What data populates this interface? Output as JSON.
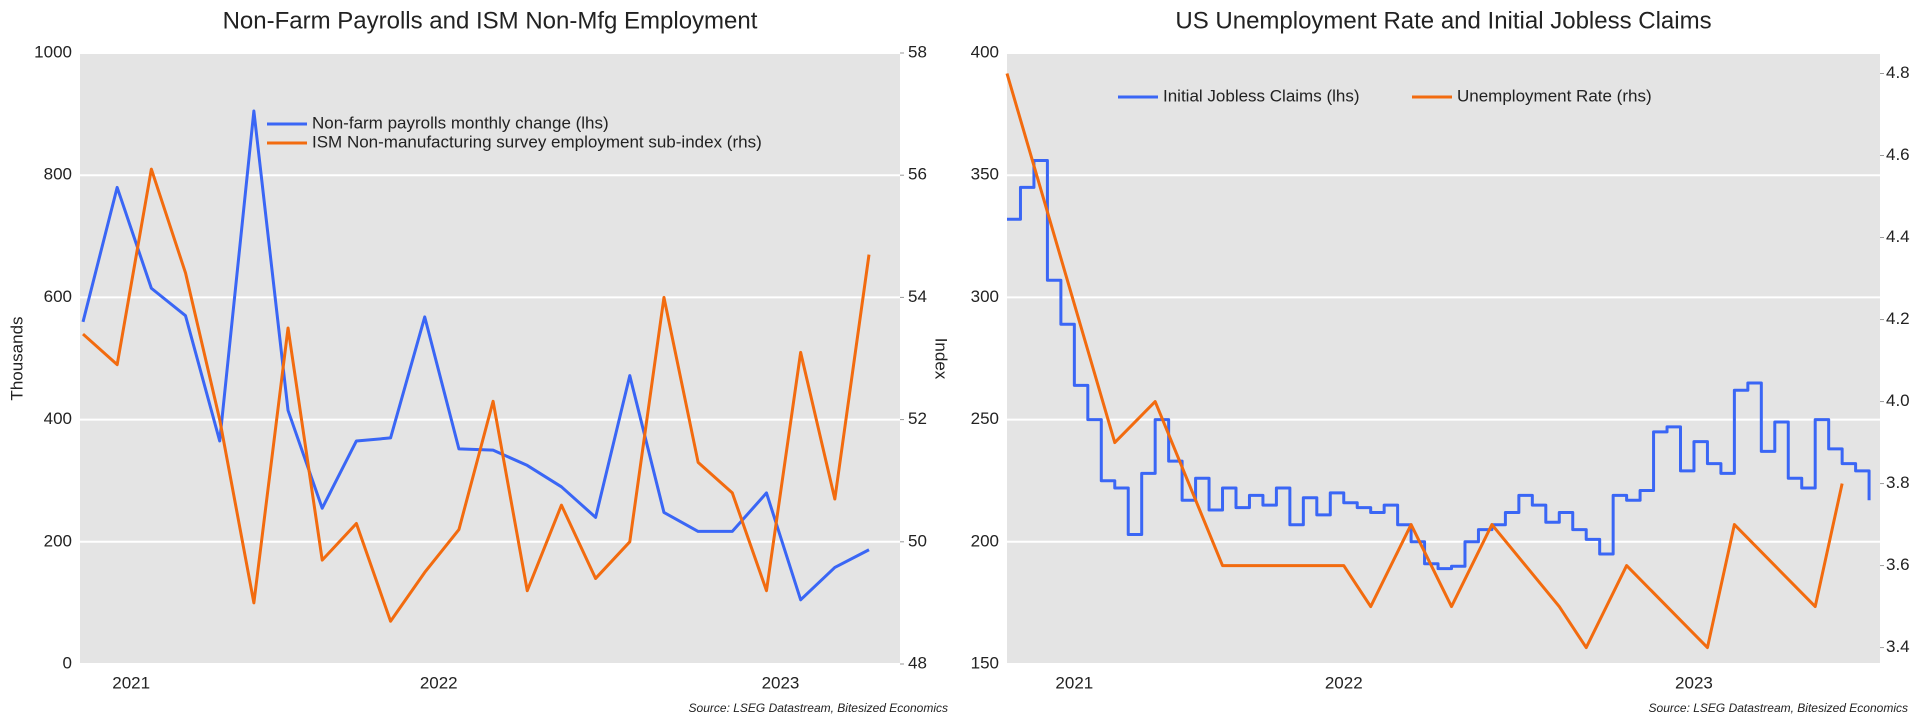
{
  "chart_data": [
    {
      "type": "line",
      "title": "Non-Farm Payrolls and ISM Non-Mfg Employment",
      "ylabel": "Thousands",
      "y2label": "Index",
      "categories": [
        null,
        "2021",
        null,
        null,
        null,
        null,
        null,
        null,
        null,
        null,
        "2022",
        null,
        null,
        null,
        null,
        null,
        null,
        null,
        null,
        null,
        "2023",
        null,
        null,
        null
      ],
      "series": [
        {
          "name": "Non-farm payrolls monthly change (lhs)",
          "color": "#3a66f5",
          "values": [
            560,
            780,
            615,
            570,
            365,
            905,
            415,
            255,
            365,
            370,
            568,
            352,
            350,
            325,
            290,
            240,
            472,
            248,
            217,
            217,
            280,
            105,
            158,
            187
          ]
        },
        {
          "name": "ISM Non-manufacturing survey employment sub-index (rhs)",
          "color": "#f26b0f",
          "axis": "y2",
          "values": [
            53.4,
            52.9,
            56.1,
            54.4,
            52.0,
            49.0,
            53.5,
            49.7,
            50.3,
            48.7,
            49.5,
            50.2,
            52.3,
            49.2,
            50.6,
            49.4,
            50.0,
            54.0,
            51.3,
            50.8,
            49.2,
            53.1,
            50.7,
            54.7
          ]
        }
      ],
      "ylim": [
        0,
        1000
      ],
      "yticks": [
        0,
        200,
        400,
        600,
        800,
        1000
      ],
      "y2lim": [
        48,
        58
      ],
      "y2ticks": [
        48,
        50,
        52,
        54,
        56,
        58
      ],
      "grid": true,
      "source": "Source: LSEG Datastream, Bitesized Economics"
    },
    {
      "type": "line",
      "title": "US Unemployment Rate and Initial Jobless Claims",
      "categories": [
        null,
        null,
        null,
        null,
        null,
        "2021",
        null,
        null,
        null,
        null,
        null,
        null,
        null,
        null,
        null,
        null,
        null,
        null,
        null,
        null,
        null,
        null,
        null,
        null,
        null,
        "2022",
        null,
        null,
        null,
        null,
        null,
        null,
        null,
        null,
        null,
        null,
        null,
        null,
        null,
        null,
        null,
        null,
        null,
        null,
        null,
        null,
        null,
        null,
        null,
        null,
        null,
        "2023",
        null,
        null,
        null,
        null,
        null,
        null,
        null,
        null,
        null,
        null,
        null,
        null,
        null
      ],
      "series": [
        {
          "name": "Initial Jobless Claims (lhs)",
          "color": "#3a66f5",
          "step": true,
          "values": [
            332,
            345,
            356,
            307,
            289,
            264,
            250,
            225,
            222,
            203,
            228,
            250,
            233,
            217,
            226,
            213,
            222,
            214,
            219,
            215,
            222,
            207,
            218,
            211,
            220,
            216,
            214,
            212,
            215,
            207,
            200,
            191,
            189,
            190,
            200,
            205,
            207,
            212,
            219,
            215,
            208,
            212,
            205,
            201,
            195,
            219,
            217,
            221,
            245,
            247,
            229,
            241,
            232,
            228,
            262,
            265,
            237,
            249,
            226,
            222,
            250,
            238,
            232,
            229,
            217
          ]
        },
        {
          "name": "Unemployment Rate (rhs)",
          "color": "#f26b0f",
          "axis": "y2",
          "values": [
            4.8,
            null,
            null,
            null,
            null,
            null,
            null,
            null,
            3.9,
            null,
            null,
            4.0,
            null,
            null,
            null,
            null,
            3.6,
            null,
            null,
            null,
            null,
            null,
            null,
            null,
            null,
            3.6,
            null,
            3.5,
            null,
            null,
            3.7,
            null,
            null,
            3.5,
            null,
            null,
            3.7,
            null,
            null,
            null,
            null,
            3.5,
            null,
            3.4,
            null,
            null,
            3.6,
            null,
            null,
            null,
            null,
            null,
            3.4,
            null,
            3.7,
            null,
            null,
            3.6,
            null,
            null,
            3.5,
            null,
            3.8,
            null,
            null
          ]
        }
      ],
      "ylim": [
        150,
        400
      ],
      "yticks": [
        150,
        200,
        250,
        300,
        350,
        400
      ],
      "y2lim": [
        3.36,
        4.85
      ],
      "y2ticks": [
        3.4,
        3.6,
        3.8,
        {
          "value": 4,
          "label": "4.0"
        },
        4.2,
        4.4,
        4.6,
        4.8
      ],
      "grid": true,
      "source": "Source: LSEG Datastream, Bitesized Economics"
    }
  ]
}
